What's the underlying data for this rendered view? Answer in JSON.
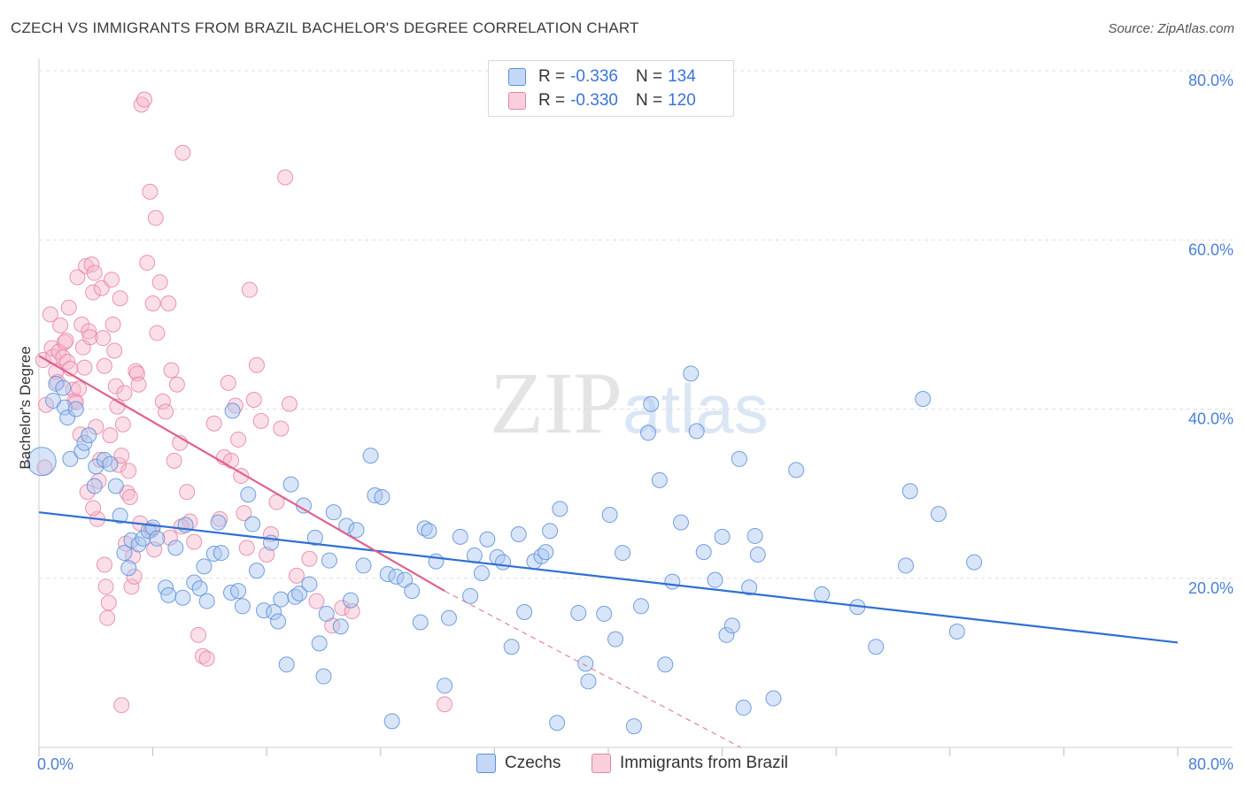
{
  "header": {
    "title": "CZECH VS IMMIGRANTS FROM BRAZIL BACHELOR'S DEGREE CORRELATION CHART",
    "source": "Source: ZipAtlas.com"
  },
  "watermark": {
    "zip": "ZIP",
    "atlas": "atlas"
  },
  "legend": {
    "czech": {
      "r_label": "R = ",
      "r_value": "-0.336",
      "n_label": "N = ",
      "n_value": "134"
    },
    "brazil": {
      "r_label": "R = ",
      "r_value": "-0.330",
      "n_label": "N = ",
      "n_value": "120"
    }
  },
  "bottom_legend": {
    "czech": "Czechs",
    "brazil": "Immigrants from Brazil"
  },
  "colors": {
    "czech_fill": "#a9c6ef",
    "czech_stroke": "#5b8fd9",
    "czech_line": "#2f6fd4",
    "brazil_fill": "#f6b7cb",
    "brazil_stroke": "#e682a6",
    "brazil_line": "#e0608f",
    "grid": "#dddddd",
    "tick_text": "#4a7fd4"
  },
  "chart_data": {
    "type": "scatter",
    "title": "CZECH VS IMMIGRANTS FROM BRAZIL BACHELOR'S DEGREE CORRELATION CHART",
    "xlabel": "",
    "ylabel": "Bachelor's Degree",
    "xlim": [
      0,
      80
    ],
    "ylim": [
      0,
      80
    ],
    "x_tick_labels": [
      "0.0%",
      "80.0%"
    ],
    "y_ticks": [
      20,
      40,
      60,
      80
    ],
    "y_tick_labels": [
      "20.0%",
      "40.0%",
      "60.0%",
      "80.0%"
    ],
    "grid": true,
    "series": [
      {
        "name": "Czechs",
        "r": -0.336,
        "n": 134,
        "trend": {
          "x": [
            0,
            80
          ],
          "y": [
            27.8,
            12.4
          ]
        },
        "points": [
          [
            0.2,
            33.8
          ],
          [
            1,
            41
          ],
          [
            1.2,
            43
          ],
          [
            1.7,
            42.5
          ],
          [
            1.8,
            40.2
          ],
          [
            2,
            39
          ],
          [
            2.2,
            34.1
          ],
          [
            2.6,
            40
          ],
          [
            3,
            35
          ],
          [
            3.2,
            36
          ],
          [
            3.5,
            36.9
          ],
          [
            3.9,
            30.9
          ],
          [
            4,
            33.2
          ],
          [
            4.6,
            34
          ],
          [
            5,
            33.5
          ],
          [
            5.4,
            30.9
          ],
          [
            5.7,
            27.4
          ],
          [
            6,
            23
          ],
          [
            6.3,
            21.2
          ],
          [
            6.5,
            24.5
          ],
          [
            7,
            24
          ],
          [
            7.3,
            24.7
          ],
          [
            7.7,
            25.6
          ],
          [
            8,
            26
          ],
          [
            8.3,
            24.7
          ],
          [
            8.9,
            18.9
          ],
          [
            9.1,
            18
          ],
          [
            9.6,
            23.6
          ],
          [
            10.1,
            17.7
          ],
          [
            10.3,
            26.3
          ],
          [
            10.9,
            19.5
          ],
          [
            11.3,
            18.8
          ],
          [
            11.6,
            21.4
          ],
          [
            11.8,
            17.3
          ],
          [
            12.3,
            22.9
          ],
          [
            12.6,
            26.6
          ],
          [
            12.8,
            23
          ],
          [
            13.5,
            18.3
          ],
          [
            13.6,
            39.8
          ],
          [
            14,
            18.5
          ],
          [
            14.3,
            16.7
          ],
          [
            14.7,
            29.9
          ],
          [
            15,
            26.4
          ],
          [
            15.3,
            20.9
          ],
          [
            15.8,
            16.2
          ],
          [
            16.3,
            24.2
          ],
          [
            16.5,
            16
          ],
          [
            16.8,
            14.9
          ],
          [
            17,
            17.5
          ],
          [
            17.4,
            9.8
          ],
          [
            17.7,
            31.1
          ],
          [
            18,
            17.8
          ],
          [
            18.3,
            18.2
          ],
          [
            18.6,
            28.6
          ],
          [
            19,
            19.3
          ],
          [
            19.4,
            24.8
          ],
          [
            19.7,
            12.3
          ],
          [
            20,
            8.4
          ],
          [
            20.2,
            15.8
          ],
          [
            20.4,
            22.1
          ],
          [
            20.7,
            27.8
          ],
          [
            21.2,
            14.3
          ],
          [
            21.6,
            26.2
          ],
          [
            21.9,
            17.4
          ],
          [
            22.3,
            25.7
          ],
          [
            22.8,
            21.5
          ],
          [
            23.3,
            34.5
          ],
          [
            23.6,
            29.8
          ],
          [
            24.1,
            29.6
          ],
          [
            24.5,
            20.5
          ],
          [
            24.8,
            3.1
          ],
          [
            25.1,
            20.2
          ],
          [
            25.7,
            19.8
          ],
          [
            26.2,
            18.5
          ],
          [
            26.8,
            14.8
          ],
          [
            27.1,
            25.9
          ],
          [
            27.4,
            25.6
          ],
          [
            27.9,
            22
          ],
          [
            28.5,
            7.3
          ],
          [
            28.8,
            15.3
          ],
          [
            29.6,
            24.9
          ],
          [
            30.3,
            17.9
          ],
          [
            30.6,
            22.7
          ],
          [
            31.1,
            20.6
          ],
          [
            31.5,
            24.6
          ],
          [
            32.2,
            22.5
          ],
          [
            32.6,
            21.9
          ],
          [
            33.2,
            11.9
          ],
          [
            33.7,
            25.2
          ],
          [
            34.1,
            16
          ],
          [
            34.8,
            22
          ],
          [
            35.3,
            22.6
          ],
          [
            35.6,
            23.1
          ],
          [
            35.9,
            25.6
          ],
          [
            36.4,
            2.9
          ],
          [
            36.6,
            28.2
          ],
          [
            37.9,
            15.9
          ],
          [
            38.4,
            9.9
          ],
          [
            38.6,
            7.8
          ],
          [
            39.7,
            15.8
          ],
          [
            40.1,
            27.5
          ],
          [
            40.5,
            12.8
          ],
          [
            41,
            23
          ],
          [
            41.8,
            2.5
          ],
          [
            42.3,
            16.7
          ],
          [
            42.8,
            37.2
          ],
          [
            43,
            40.6
          ],
          [
            43.6,
            31.6
          ],
          [
            44,
            9.8
          ],
          [
            44.5,
            19.6
          ],
          [
            45.1,
            26.6
          ],
          [
            45.8,
            44.2
          ],
          [
            46.2,
            37.4
          ],
          [
            46.7,
            23.1
          ],
          [
            47.5,
            19.8
          ],
          [
            48,
            24.9
          ],
          [
            48.3,
            13.3
          ],
          [
            48.7,
            14.4
          ],
          [
            49.2,
            34.1
          ],
          [
            49.5,
            4.7
          ],
          [
            49.9,
            18.9
          ],
          [
            50.3,
            25
          ],
          [
            50.5,
            22.8
          ],
          [
            51.6,
            5.8
          ],
          [
            53.2,
            32.8
          ],
          [
            55,
            18.1
          ],
          [
            57.5,
            16.6
          ],
          [
            58.8,
            11.9
          ],
          [
            60.9,
            21.5
          ],
          [
            61.2,
            30.3
          ],
          [
            62.1,
            41.2
          ],
          [
            63.2,
            27.6
          ],
          [
            64.5,
            13.7
          ],
          [
            65.7,
            21.9
          ]
        ]
      },
      {
        "name": "Immigrants from Brazil",
        "r": -0.33,
        "n": 120,
        "trend": {
          "x": [
            0,
            28.5
          ],
          "y": [
            46.3,
            18.5
          ]
        },
        "trend_dashed": {
          "x": [
            28.5,
            49.3
          ],
          "y": [
            18.5,
            0
          ]
        },
        "points": [
          [
            0.3,
            45.8
          ],
          [
            0.4,
            33.1
          ],
          [
            0.5,
            40.5
          ],
          [
            0.8,
            51.2
          ],
          [
            0.9,
            47.2
          ],
          [
            1,
            46.2
          ],
          [
            1.2,
            44.4
          ],
          [
            1.3,
            43.2
          ],
          [
            1.4,
            46.8
          ],
          [
            1.5,
            49.9
          ],
          [
            1.7,
            46.1
          ],
          [
            1.8,
            47.9
          ],
          [
            1.9,
            48.1
          ],
          [
            2,
            45.6
          ],
          [
            2.1,
            52
          ],
          [
            2.2,
            44.8
          ],
          [
            2.4,
            42.3
          ],
          [
            2.5,
            41
          ],
          [
            2.6,
            40.8
          ],
          [
            2.7,
            55.6
          ],
          [
            2.8,
            42.4
          ],
          [
            2.9,
            37
          ],
          [
            3,
            50
          ],
          [
            3.1,
            47.3
          ],
          [
            3.2,
            44.9
          ],
          [
            3.3,
            56.9
          ],
          [
            3.4,
            30.2
          ],
          [
            3.5,
            49.2
          ],
          [
            3.6,
            48.5
          ],
          [
            3.7,
            57.1
          ],
          [
            3.8,
            53.8
          ],
          [
            3.9,
            56.1
          ],
          [
            4,
            37.9
          ],
          [
            4.1,
            27
          ],
          [
            4.2,
            31.5
          ],
          [
            4.3,
            34
          ],
          [
            4.4,
            54.3
          ],
          [
            4.5,
            48.4
          ],
          [
            4.6,
            45.1
          ],
          [
            4.7,
            19
          ],
          [
            4.8,
            15.3
          ],
          [
            4.9,
            17.1
          ],
          [
            5,
            36.9
          ],
          [
            5.1,
            55.3
          ],
          [
            5.2,
            50
          ],
          [
            5.3,
            46.9
          ],
          [
            5.4,
            42.7
          ],
          [
            5.5,
            40.3
          ],
          [
            5.6,
            33.4
          ],
          [
            5.7,
            53.1
          ],
          [
            5.8,
            34.5
          ],
          [
            5.9,
            38.2
          ],
          [
            6,
            41.9
          ],
          [
            6.2,
            30.1
          ],
          [
            6.3,
            32.7
          ],
          [
            6.4,
            29.6
          ],
          [
            6.5,
            19
          ],
          [
            6.6,
            22.6
          ],
          [
            6.7,
            20.2
          ],
          [
            6.8,
            44.5
          ],
          [
            6.9,
            44.2
          ],
          [
            7,
            42.9
          ],
          [
            7.2,
            76
          ],
          [
            7.4,
            76.6
          ],
          [
            7.6,
            57.3
          ],
          [
            7.8,
            65.7
          ],
          [
            8,
            52.5
          ],
          [
            8.2,
            62.6
          ],
          [
            8.3,
            49
          ],
          [
            8.5,
            55
          ],
          [
            8.7,
            40.9
          ],
          [
            8.9,
            39.7
          ],
          [
            9.1,
            52.5
          ],
          [
            9.3,
            44.6
          ],
          [
            9.5,
            33.9
          ],
          [
            9.7,
            42.9
          ],
          [
            9.9,
            36
          ],
          [
            10.1,
            70.3
          ],
          [
            10.4,
            30.2
          ],
          [
            10.6,
            26.7
          ],
          [
            10.9,
            24.3
          ],
          [
            11.2,
            13.3
          ],
          [
            11.5,
            10.8
          ],
          [
            11.8,
            10.5
          ],
          [
            12.3,
            38.3
          ],
          [
            12.7,
            27
          ],
          [
            13,
            34.3
          ],
          [
            13.3,
            43.1
          ],
          [
            13.5,
            33.9
          ],
          [
            13.8,
            40.4
          ],
          [
            14,
            36.4
          ],
          [
            14.2,
            32.1
          ],
          [
            14.4,
            27.7
          ],
          [
            14.6,
            23.6
          ],
          [
            14.8,
            54.1
          ],
          [
            15.1,
            41.1
          ],
          [
            15.3,
            45.2
          ],
          [
            15.6,
            38.6
          ],
          [
            16,
            22.8
          ],
          [
            16.3,
            25.2
          ],
          [
            16.7,
            29
          ],
          [
            17,
            37.7
          ],
          [
            17.3,
            67.4
          ],
          [
            17.6,
            40.6
          ],
          [
            18.1,
            20.3
          ],
          [
            19,
            22.3
          ],
          [
            19.5,
            17.3
          ],
          [
            20.6,
            14.4
          ],
          [
            21.3,
            16.5
          ],
          [
            22,
            16.1
          ],
          [
            28.5,
            5.1
          ],
          [
            3.8,
            28.3
          ],
          [
            4.6,
            21.6
          ],
          [
            5.8,
            5
          ],
          [
            6.1,
            24.1
          ],
          [
            7.1,
            26.5
          ],
          [
            7.9,
            25.7
          ],
          [
            8.1,
            23.4
          ],
          [
            9.2,
            24.8
          ],
          [
            10,
            26.1
          ]
        ]
      }
    ]
  }
}
